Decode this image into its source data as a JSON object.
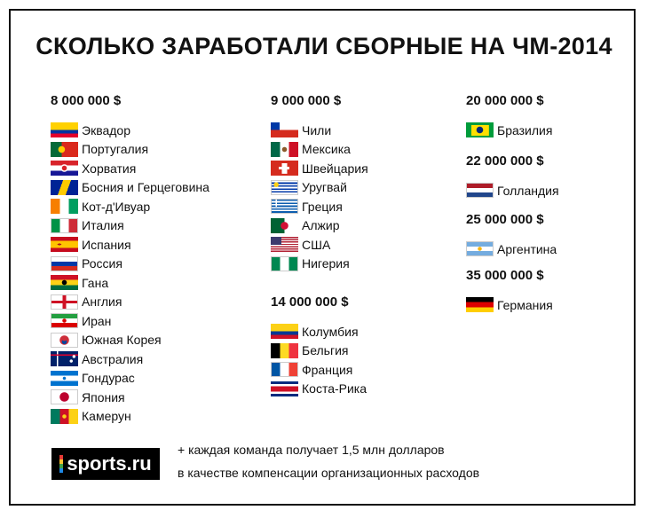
{
  "title": "СКОЛЬКО ЗАРАБОТАЛИ СБОРНЫЕ НА ЧМ-2014",
  "groups": [
    {
      "amount": "8 000 000 $",
      "teams": [
        {
          "name": "Эквадор",
          "flag": "flag-ecuador"
        },
        {
          "name": "Португалия",
          "flag": "flag-portugal"
        },
        {
          "name": "Хорватия",
          "flag": "flag-croatia"
        },
        {
          "name": "Босния и Герцеговина",
          "flag": "flag-bosnia"
        },
        {
          "name": "Кот-д'Ивуар",
          "flag": "flag-ivory-coast"
        },
        {
          "name": "Италия",
          "flag": "flag-italy"
        },
        {
          "name": "Испания",
          "flag": "flag-spain"
        },
        {
          "name": "Россия",
          "flag": "flag-russia"
        },
        {
          "name": "Гана",
          "flag": "flag-ghana"
        },
        {
          "name": "Англия",
          "flag": "flag-england"
        },
        {
          "name": "Иран",
          "flag": "flag-iran"
        },
        {
          "name": "Южная Корея",
          "flag": "flag-south-korea"
        },
        {
          "name": "Австралия",
          "flag": "flag-australia"
        },
        {
          "name": "Гондурас",
          "flag": "flag-honduras"
        },
        {
          "name": "Япония",
          "flag": "flag-japan"
        },
        {
          "name": "Камерун",
          "flag": "flag-cameroon"
        }
      ]
    },
    {
      "amount": "9 000 000 $",
      "teams": [
        {
          "name": "Чили",
          "flag": "flag-chile"
        },
        {
          "name": "Мексика",
          "flag": "flag-mexico"
        },
        {
          "name": "Швейцария",
          "flag": "flag-switzerland"
        },
        {
          "name": "Уругвай",
          "flag": "flag-uruguay"
        },
        {
          "name": "Греция",
          "flag": "flag-greece"
        },
        {
          "name": "Алжир",
          "flag": "flag-algeria"
        },
        {
          "name": "США",
          "flag": "flag-usa"
        },
        {
          "name": "Нигерия",
          "flag": "flag-nigeria"
        }
      ]
    },
    {
      "amount": "14 000 000 $",
      "teams": [
        {
          "name": "Колумбия",
          "flag": "flag-colombia"
        },
        {
          "name": "Бельгия",
          "flag": "flag-belgium"
        },
        {
          "name": "Франция",
          "flag": "flag-france"
        },
        {
          "name": "Коста-Рика",
          "flag": "flag-costa-rica"
        }
      ]
    },
    {
      "amount": "20 000 000 $",
      "teams": [
        {
          "name": "Бразилия",
          "flag": "flag-brazil"
        }
      ]
    },
    {
      "amount": "22 000 000 $",
      "teams": [
        {
          "name": "Голландия",
          "flag": "flag-netherlands"
        }
      ]
    },
    {
      "amount": "25 000 000 $",
      "teams": [
        {
          "name": "Аргентина",
          "flag": "flag-argentina"
        }
      ]
    },
    {
      "amount": "35 000 000 $",
      "teams": [
        {
          "name": "Германия",
          "flag": "flag-germany"
        }
      ]
    }
  ],
  "logo": "sports.ru",
  "note": [
    "+ каждая команда получает 1,5 млн долларов",
    "в качестве компенсации организационных расходов"
  ]
}
